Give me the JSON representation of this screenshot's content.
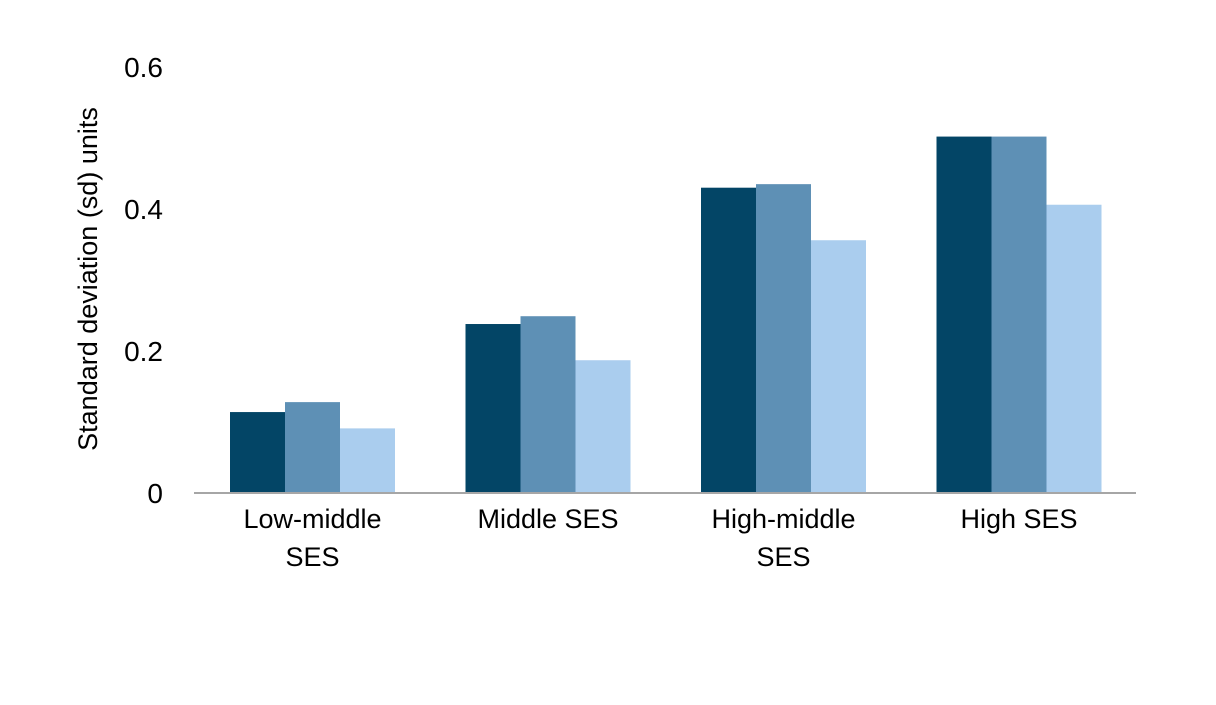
{
  "chart_data": {
    "type": "bar",
    "title": "",
    "xlabel": "",
    "ylabel": "Standard deviation (sd) units",
    "ylim": [
      0,
      0.6
    ],
    "yticks": [
      {
        "value": 0,
        "label": "0"
      },
      {
        "value": 0.2,
        "label": "0.2"
      },
      {
        "value": 0.4,
        "label": "0.4"
      },
      {
        "value": 0.6,
        "label": "0.6"
      }
    ],
    "grid": false,
    "legend": "none",
    "categories": [
      [
        "Low-middle",
        "SES"
      ],
      [
        "Middle SES"
      ],
      [
        "High-middle",
        "SES"
      ],
      [
        "High SES"
      ]
    ],
    "series": [
      {
        "color": "#034566",
        "values": [
          0.114,
          0.238,
          0.43,
          0.502
        ]
      },
      {
        "color": "#5e90b5",
        "values": [
          0.128,
          0.249,
          0.435,
          0.502
        ]
      },
      {
        "color": "#aacdee",
        "values": [
          0.091,
          0.187,
          0.356,
          0.406
        ]
      }
    ],
    "axis_color": "#a6a6a6"
  }
}
